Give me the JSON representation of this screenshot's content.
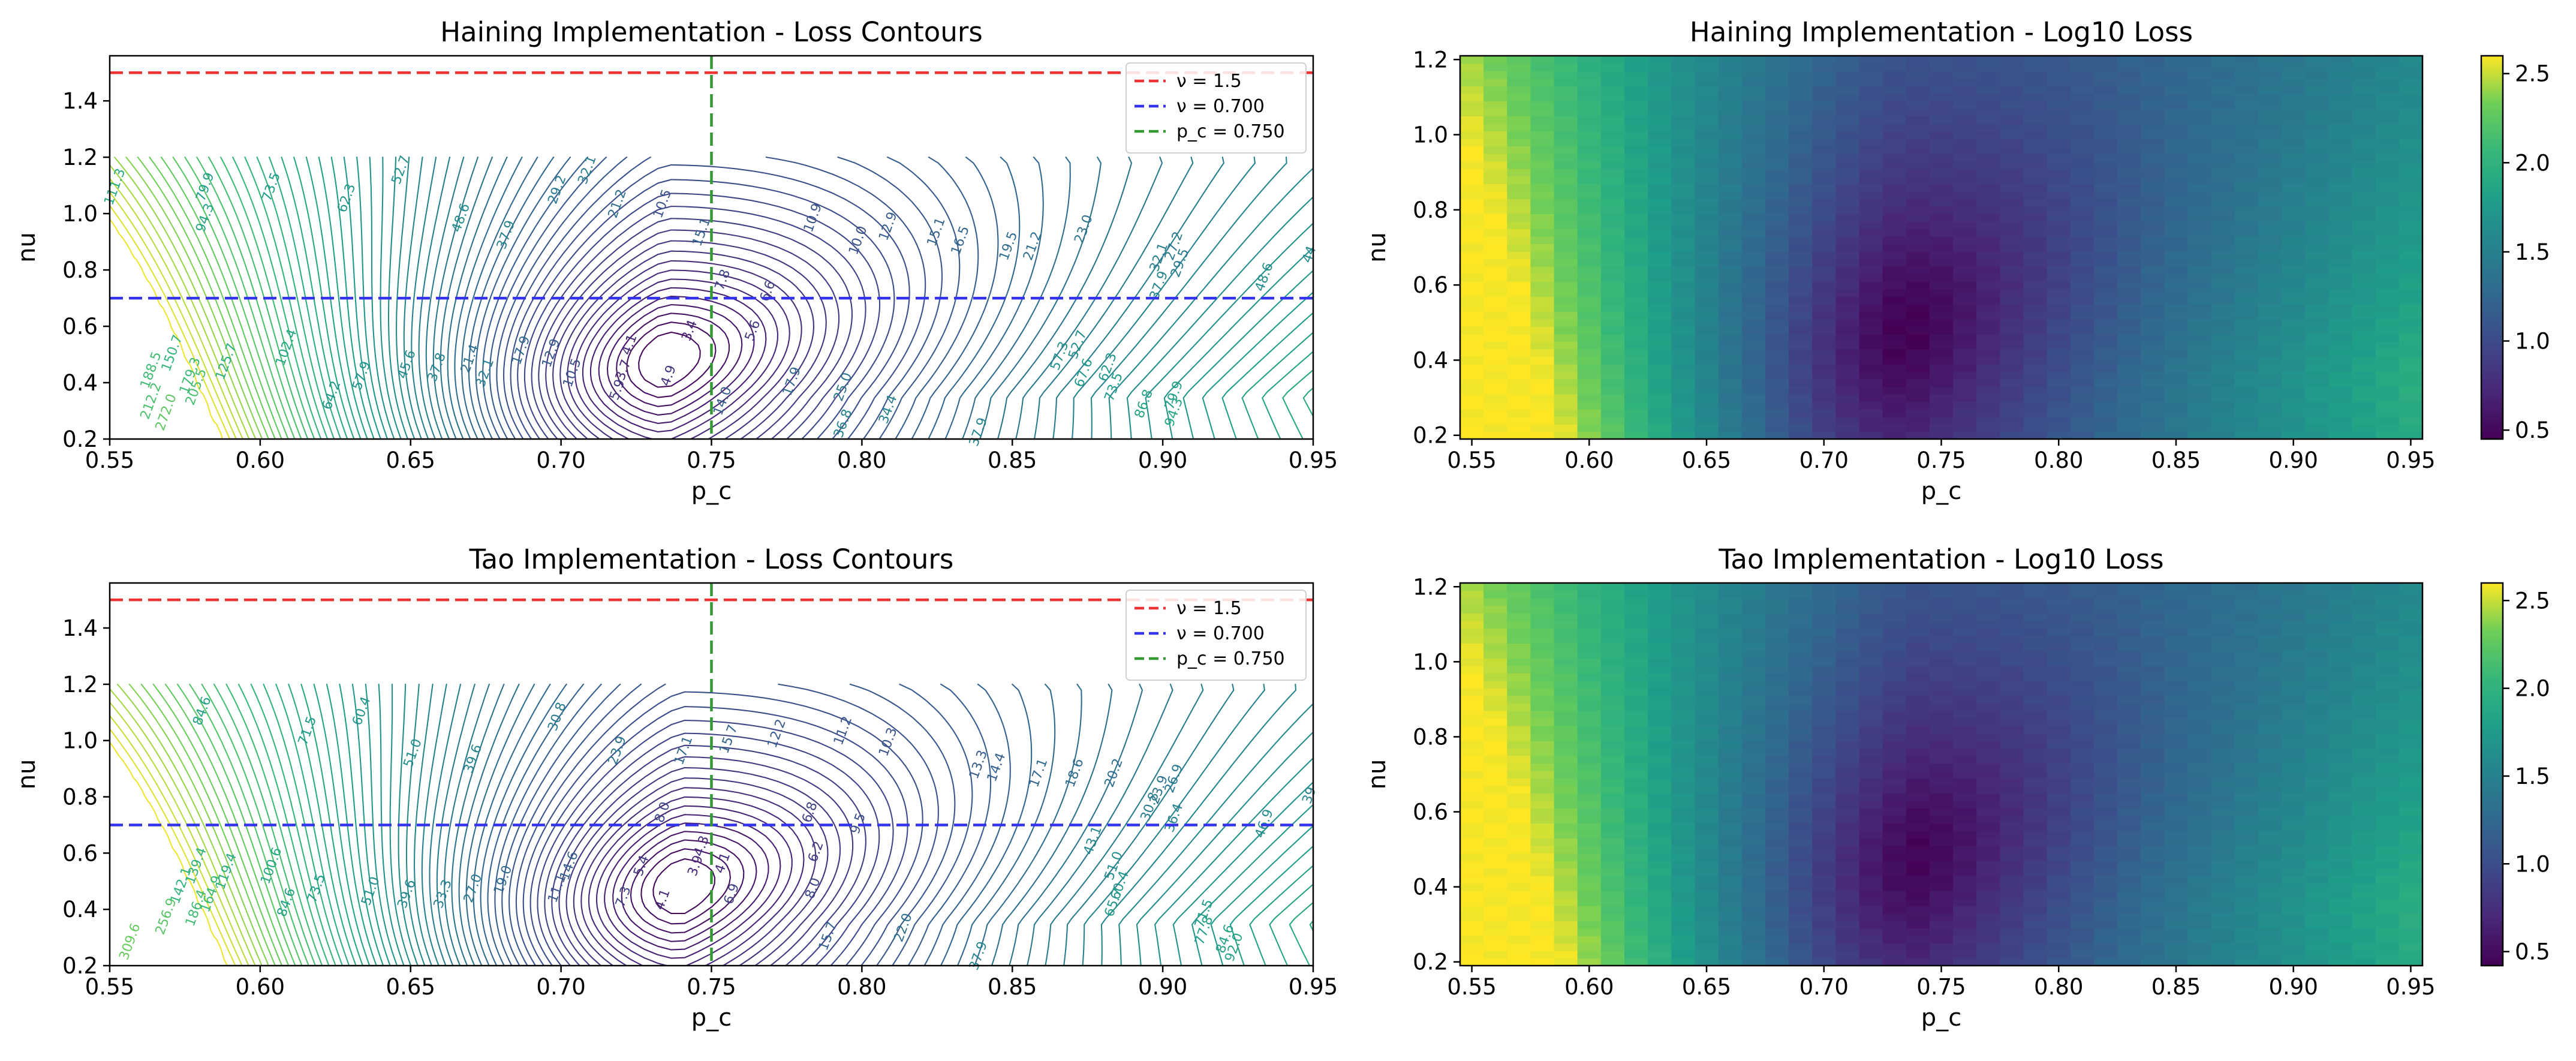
{
  "chart_data": [
    {
      "id": "haining-contour",
      "type": "contour",
      "title": "Haining Implementation - Loss Contours",
      "xlabel": "p_c",
      "ylabel": "nu",
      "xlim": [
        0.55,
        0.95
      ],
      "ylim": [
        0.2,
        1.56
      ],
      "xticks": [
        "0.55",
        "0.60",
        "0.65",
        "0.70",
        "0.75",
        "0.80",
        "0.85",
        "0.90",
        "0.95"
      ],
      "yticks": [
        "0.2",
        "0.4",
        "0.6",
        "0.8",
        "1.0",
        "1.2",
        "1.4"
      ],
      "data_extent": {
        "p_c": [
          0.55,
          0.95
        ],
        "nu": [
          0.2,
          1.2
        ]
      },
      "minimum": {
        "p_c": 0.735,
        "nu": 0.48
      },
      "reference_lines": [
        {
          "orientation": "horizontal",
          "value": 1.5,
          "color": "#ee3333",
          "label": "ν = 1.5"
        },
        {
          "orientation": "horizontal",
          "value": 0.7,
          "color": "#3333ee",
          "label": "ν = 0.700"
        },
        {
          "orientation": "vertical",
          "value": 0.75,
          "color": "#339933",
          "label": "p_c = 0.750"
        }
      ],
      "legend_position": "upper right",
      "contour_labels": [
        {
          "p_c": 0.553,
          "nu": 1.09,
          "text": "111.3"
        },
        {
          "p_c": 0.583,
          "nu": 1.09,
          "text": "79.9"
        },
        {
          "p_c": 0.605,
          "nu": 1.09,
          "text": "73.5"
        },
        {
          "p_c": 0.63,
          "nu": 1.05,
          "text": "62.3"
        },
        {
          "p_c": 0.648,
          "nu": 1.15,
          "text": "52.7"
        },
        {
          "p_c": 0.583,
          "nu": 0.98,
          "text": "94.3"
        },
        {
          "p_c": 0.668,
          "nu": 0.98,
          "text": "48.6"
        },
        {
          "p_c": 0.683,
          "nu": 0.92,
          "text": "37.9"
        },
        {
          "p_c": 0.7,
          "nu": 1.08,
          "text": "29.2"
        },
        {
          "p_c": 0.71,
          "nu": 1.15,
          "text": "32.1"
        },
        {
          "p_c": 0.72,
          "nu": 1.03,
          "text": "21.2"
        },
        {
          "p_c": 0.735,
          "nu": 1.03,
          "text": "10.5"
        },
        {
          "p_c": 0.748,
          "nu": 0.93,
          "text": "15.1"
        },
        {
          "p_c": 0.785,
          "nu": 0.98,
          "text": "10.9"
        },
        {
          "p_c": 0.8,
          "nu": 0.9,
          "text": "10.0"
        },
        {
          "p_c": 0.81,
          "nu": 0.95,
          "text": "12.9"
        },
        {
          "p_c": 0.826,
          "nu": 0.93,
          "text": "15.1"
        },
        {
          "p_c": 0.834,
          "nu": 0.9,
          "text": "16.5"
        },
        {
          "p_c": 0.85,
          "nu": 0.88,
          "text": "19.5"
        },
        {
          "p_c": 0.858,
          "nu": 0.88,
          "text": "21.2"
        },
        {
          "p_c": 0.875,
          "nu": 0.94,
          "text": "23.0"
        },
        {
          "p_c": 0.905,
          "nu": 0.88,
          "text": "27.2"
        },
        {
          "p_c": 0.9,
          "nu": 0.84,
          "text": "32.1"
        },
        {
          "p_c": 0.907,
          "nu": 0.82,
          "text": "29.5"
        },
        {
          "p_c": 0.935,
          "nu": 0.77,
          "text": "48.6"
        },
        {
          "p_c": 0.95,
          "nu": 0.85,
          "text": "44"
        },
        {
          "p_c": 0.9,
          "nu": 0.74,
          "text": "37.9"
        },
        {
          "p_c": 0.755,
          "nu": 0.76,
          "text": "7.8"
        },
        {
          "p_c": 0.77,
          "nu": 0.72,
          "text": "6.6"
        },
        {
          "p_c": 0.765,
          "nu": 0.58,
          "text": "5.6"
        },
        {
          "p_c": 0.744,
          "nu": 0.58,
          "text": "3.4"
        },
        {
          "p_c": 0.724,
          "nu": 0.53,
          "text": "4.1"
        },
        {
          "p_c": 0.737,
          "nu": 0.42,
          "text": "4.9"
        },
        {
          "p_c": 0.722,
          "nu": 0.44,
          "text": "3.7"
        },
        {
          "p_c": 0.72,
          "nu": 0.37,
          "text": "5.9"
        },
        {
          "p_c": 0.755,
          "nu": 0.33,
          "text": "14.0"
        },
        {
          "p_c": 0.778,
          "nu": 0.4,
          "text": "17.9"
        },
        {
          "p_c": 0.795,
          "nu": 0.38,
          "text": "25.0"
        },
        {
          "p_c": 0.81,
          "nu": 0.3,
          "text": "34.4"
        },
        {
          "p_c": 0.795,
          "nu": 0.25,
          "text": "36.8"
        },
        {
          "p_c": 0.84,
          "nu": 0.22,
          "text": "37.9"
        },
        {
          "p_c": 0.883,
          "nu": 0.45,
          "text": "62.3"
        },
        {
          "p_c": 0.867,
          "nu": 0.49,
          "text": "57.3"
        },
        {
          "p_c": 0.873,
          "nu": 0.53,
          "text": "52.7"
        },
        {
          "p_c": 0.875,
          "nu": 0.43,
          "text": "67.6"
        },
        {
          "p_c": 0.885,
          "nu": 0.38,
          "text": "73.5"
        },
        {
          "p_c": 0.905,
          "nu": 0.35,
          "text": "79.9"
        },
        {
          "p_c": 0.895,
          "nu": 0.32,
          "text": "86.8"
        },
        {
          "p_c": 0.905,
          "nu": 0.29,
          "text": "94.3"
        },
        {
          "p_c": 0.688,
          "nu": 0.51,
          "text": "17.9"
        },
        {
          "p_c": 0.698,
          "nu": 0.5,
          "text": "12.9"
        },
        {
          "p_c": 0.705,
          "nu": 0.43,
          "text": "10.5"
        },
        {
          "p_c": 0.671,
          "nu": 0.48,
          "text": "21.4"
        },
        {
          "p_c": 0.676,
          "nu": 0.43,
          "text": "32.1"
        },
        {
          "p_c": 0.66,
          "nu": 0.45,
          "text": "37.8"
        },
        {
          "p_c": 0.65,
          "nu": 0.46,
          "text": "45.6"
        },
        {
          "p_c": 0.635,
          "nu": 0.42,
          "text": "57.9"
        },
        {
          "p_c": 0.61,
          "nu": 0.52,
          "text": "102.4"
        },
        {
          "p_c": 0.625,
          "nu": 0.35,
          "text": "64.2"
        },
        {
          "p_c": 0.59,
          "nu": 0.47,
          "text": "125.7"
        },
        {
          "p_c": 0.572,
          "nu": 0.5,
          "text": "150.7"
        },
        {
          "p_c": 0.565,
          "nu": 0.44,
          "text": "188.5"
        },
        {
          "p_c": 0.578,
          "nu": 0.42,
          "text": "179.3"
        },
        {
          "p_c": 0.58,
          "nu": 0.38,
          "text": "205.5"
        },
        {
          "p_c": 0.565,
          "nu": 0.33,
          "text": "212.2"
        },
        {
          "p_c": 0.57,
          "nu": 0.29,
          "text": "272.0"
        }
      ]
    },
    {
      "id": "haining-heatmap",
      "type": "heatmap",
      "title": "Haining Implementation - Log10 Loss",
      "xlabel": "p_c",
      "ylabel": "nu",
      "xlim": [
        0.545,
        0.955
      ],
      "ylim": [
        0.19,
        1.21
      ],
      "xticks": [
        "0.55",
        "0.60",
        "0.65",
        "0.70",
        "0.75",
        "0.80",
        "0.85",
        "0.90",
        "0.95"
      ],
      "yticks": [
        "0.2",
        "0.4",
        "0.6",
        "0.8",
        "1.0",
        "1.2"
      ],
      "colorbar_ticks": [
        "0.5",
        "1.0",
        "1.5",
        "2.0",
        "2.5"
      ],
      "value_range": [
        0.45,
        2.6
      ],
      "colormap": "viridis",
      "grid_size": [
        41,
        51
      ],
      "minimum": {
        "p_c": 0.735,
        "nu": 0.48,
        "value": 0.46
      }
    },
    {
      "id": "tao-contour",
      "type": "contour",
      "title": "Tao Implementation - Loss Contours",
      "xlabel": "p_c",
      "ylabel": "nu",
      "xlim": [
        0.55,
        0.95
      ],
      "ylim": [
        0.2,
        1.56
      ],
      "xticks": [
        "0.55",
        "0.60",
        "0.65",
        "0.70",
        "0.75",
        "0.80",
        "0.85",
        "0.90",
        "0.95"
      ],
      "yticks": [
        "0.2",
        "0.4",
        "0.6",
        "0.8",
        "1.0",
        "1.2",
        "1.4"
      ],
      "data_extent": {
        "p_c": [
          0.55,
          0.95
        ],
        "nu": [
          0.2,
          1.2
        ]
      },
      "minimum": {
        "p_c": 0.74,
        "nu": 0.48
      },
      "reference_lines": [
        {
          "orientation": "horizontal",
          "value": 1.5,
          "color": "#ee3333",
          "label": "ν = 1.5"
        },
        {
          "orientation": "horizontal",
          "value": 0.7,
          "color": "#3333ee",
          "label": "ν = 0.700"
        },
        {
          "orientation": "vertical",
          "value": 0.75,
          "color": "#339933",
          "label": "p_c = 0.750"
        }
      ],
      "legend_position": "upper right",
      "contour_labels": [
        {
          "p_c": 0.582,
          "nu": 1.1,
          "text": "84.6"
        },
        {
          "p_c": 0.617,
          "nu": 1.03,
          "text": "71.5"
        },
        {
          "p_c": 0.635,
          "nu": 1.1,
          "text": "60.4"
        },
        {
          "p_c": 0.652,
          "nu": 0.95,
          "text": "51.0"
        },
        {
          "p_c": 0.672,
          "nu": 0.93,
          "text": "39.6"
        },
        {
          "p_c": 0.7,
          "nu": 1.08,
          "text": "30.8"
        },
        {
          "p_c": 0.72,
          "nu": 0.96,
          "text": "23.9"
        },
        {
          "p_c": 0.742,
          "nu": 0.96,
          "text": "17.1"
        },
        {
          "p_c": 0.757,
          "nu": 1.0,
          "text": "15.7"
        },
        {
          "p_c": 0.773,
          "nu": 1.02,
          "text": "12.2"
        },
        {
          "p_c": 0.795,
          "nu": 1.03,
          "text": "11.2"
        },
        {
          "p_c": 0.81,
          "nu": 0.99,
          "text": "10.3"
        },
        {
          "p_c": 0.784,
          "nu": 0.74,
          "text": "6.8"
        },
        {
          "p_c": 0.8,
          "nu": 0.7,
          "text": "9.5"
        },
        {
          "p_c": 0.786,
          "nu": 0.6,
          "text": "6.2"
        },
        {
          "p_c": 0.785,
          "nu": 0.47,
          "text": "8.0"
        },
        {
          "p_c": 0.748,
          "nu": 0.62,
          "text": "4.3"
        },
        {
          "p_c": 0.746,
          "nu": 0.55,
          "text": "3.9"
        },
        {
          "p_c": 0.755,
          "nu": 0.56,
          "text": "4.1"
        },
        {
          "p_c": 0.735,
          "nu": 0.74,
          "text": "8.0"
        },
        {
          "p_c": 0.728,
          "nu": 0.55,
          "text": "5.4"
        },
        {
          "p_c": 0.735,
          "nu": 0.43,
          "text": "4.1"
        },
        {
          "p_c": 0.722,
          "nu": 0.44,
          "text": "7.3"
        },
        {
          "p_c": 0.758,
          "nu": 0.45,
          "text": "6.9"
        },
        {
          "p_c": 0.79,
          "nu": 0.3,
          "text": "15.7"
        },
        {
          "p_c": 0.815,
          "nu": 0.33,
          "text": "22.0"
        },
        {
          "p_c": 0.84,
          "nu": 0.23,
          "text": "37.9"
        },
        {
          "p_c": 0.84,
          "nu": 0.91,
          "text": "13.3"
        },
        {
          "p_c": 0.846,
          "nu": 0.9,
          "text": "14.4"
        },
        {
          "p_c": 0.86,
          "nu": 0.88,
          "text": "17.1"
        },
        {
          "p_c": 0.872,
          "nu": 0.88,
          "text": "18.6"
        },
        {
          "p_c": 0.885,
          "nu": 0.88,
          "text": "20.2"
        },
        {
          "p_c": 0.905,
          "nu": 0.86,
          "text": "26.9"
        },
        {
          "p_c": 0.9,
          "nu": 0.82,
          "text": "23.9"
        },
        {
          "p_c": 0.897,
          "nu": 0.76,
          "text": "30.8"
        },
        {
          "p_c": 0.905,
          "nu": 0.72,
          "text": "36.4"
        },
        {
          "p_c": 0.935,
          "nu": 0.7,
          "text": "46.9"
        },
        {
          "p_c": 0.95,
          "nu": 0.8,
          "text": "39"
        },
        {
          "p_c": 0.878,
          "nu": 0.64,
          "text": "43.1"
        },
        {
          "p_c": 0.885,
          "nu": 0.55,
          "text": "51.0"
        },
        {
          "p_c": 0.887,
          "nu": 0.48,
          "text": "60.4"
        },
        {
          "p_c": 0.885,
          "nu": 0.42,
          "text": "65.7"
        },
        {
          "p_c": 0.915,
          "nu": 0.38,
          "text": "71.5"
        },
        {
          "p_c": 0.915,
          "nu": 0.32,
          "text": "77.8"
        },
        {
          "p_c": 0.922,
          "nu": 0.29,
          "text": "84.6"
        },
        {
          "p_c": 0.925,
          "nu": 0.26,
          "text": "92.0"
        },
        {
          "p_c": 0.704,
          "nu": 0.55,
          "text": "14.6"
        },
        {
          "p_c": 0.7,
          "nu": 0.47,
          "text": "11.1"
        },
        {
          "p_c": 0.682,
          "nu": 0.5,
          "text": "19.0"
        },
        {
          "p_c": 0.672,
          "nu": 0.47,
          "text": "27.0"
        },
        {
          "p_c": 0.662,
          "nu": 0.45,
          "text": "33.3"
        },
        {
          "p_c": 0.65,
          "nu": 0.45,
          "text": "39.6"
        },
        {
          "p_c": 0.638,
          "nu": 0.46,
          "text": "51.0"
        },
        {
          "p_c": 0.62,
          "nu": 0.47,
          "text": "73.5"
        },
        {
          "p_c": 0.605,
          "nu": 0.55,
          "text": "100.6"
        },
        {
          "p_c": 0.61,
          "nu": 0.42,
          "text": "84.6"
        },
        {
          "p_c": 0.59,
          "nu": 0.53,
          "text": "119.4"
        },
        {
          "p_c": 0.58,
          "nu": 0.55,
          "text": "139.4"
        },
        {
          "p_c": 0.575,
          "nu": 0.48,
          "text": "142.1"
        },
        {
          "p_c": 0.585,
          "nu": 0.45,
          "text": "164.9"
        },
        {
          "p_c": 0.58,
          "nu": 0.4,
          "text": "186.4"
        },
        {
          "p_c": 0.57,
          "nu": 0.37,
          "text": "256.9"
        },
        {
          "p_c": 0.558,
          "nu": 0.28,
          "text": "309.6"
        }
      ]
    },
    {
      "id": "tao-heatmap",
      "type": "heatmap",
      "title": "Tao Implementation - Log10 Loss",
      "xlabel": "p_c",
      "ylabel": "nu",
      "xlim": [
        0.545,
        0.955
      ],
      "ylim": [
        0.19,
        1.21
      ],
      "xticks": [
        "0.55",
        "0.60",
        "0.65",
        "0.70",
        "0.75",
        "0.80",
        "0.85",
        "0.90",
        "0.95"
      ],
      "yticks": [
        "0.2",
        "0.4",
        "0.6",
        "0.8",
        "1.0",
        "1.2"
      ],
      "colorbar_ticks": [
        "0.5",
        "1.0",
        "1.5",
        "2.0",
        "2.5"
      ],
      "value_range": [
        0.42,
        2.6
      ],
      "colormap": "viridis",
      "grid_size": [
        41,
        51
      ],
      "minimum": {
        "p_c": 0.74,
        "nu": 0.48,
        "value": 0.43
      }
    }
  ]
}
